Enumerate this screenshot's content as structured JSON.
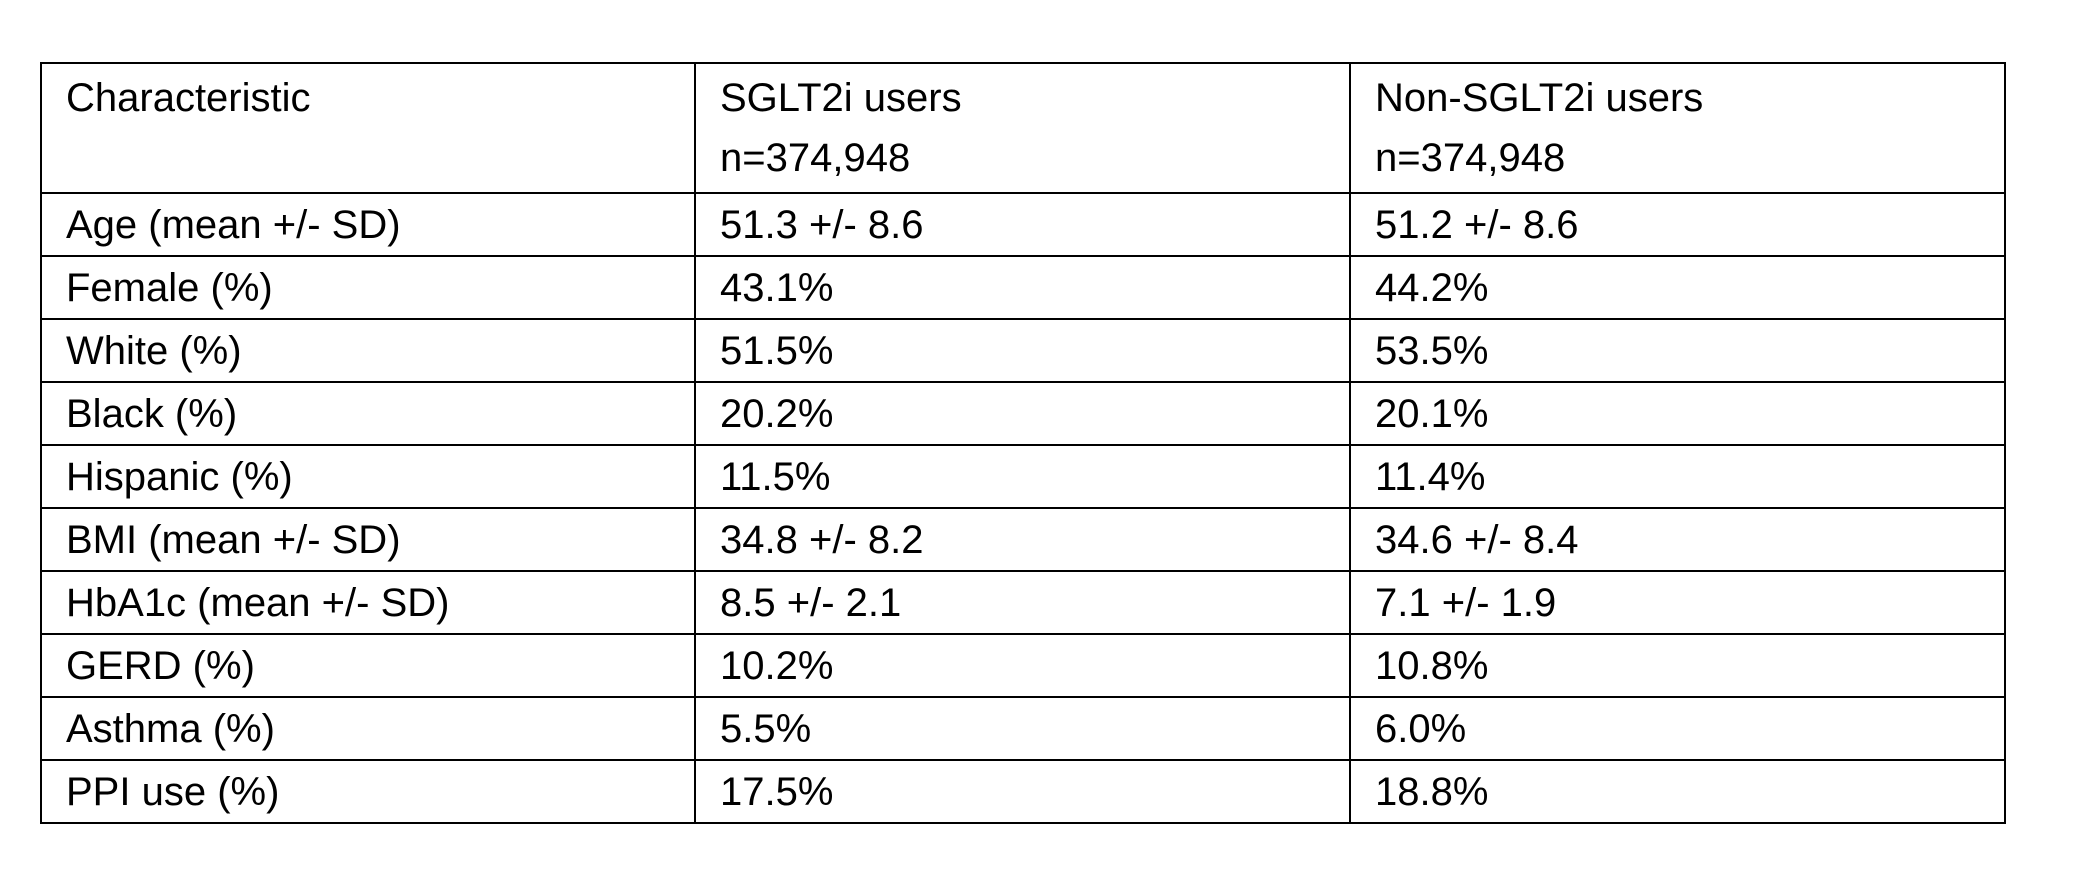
{
  "table": {
    "headers": [
      {
        "line1": "Characteristic",
        "line2": ""
      },
      {
        "line1": "SGLT2i users",
        "line2": "n=374,948"
      },
      {
        "line1": "Non-SGLT2i users",
        "line2": "n=374,948"
      }
    ],
    "rows": [
      [
        "Age (mean +/- SD)",
        "51.3 +/- 8.6",
        "51.2 +/- 8.6"
      ],
      [
        "Female (%)",
        "43.1%",
        "44.2%"
      ],
      [
        "White (%)",
        "51.5%",
        "53.5%"
      ],
      [
        "Black (%)",
        "20.2%",
        "20.1%"
      ],
      [
        "Hispanic (%)",
        "11.5%",
        "11.4%"
      ],
      [
        "BMI (mean +/- SD)",
        "34.8 +/- 8.2",
        "34.6 +/- 8.4"
      ],
      [
        "HbA1c (mean +/- SD)",
        "8.5 +/- 2.1",
        "7.1 +/- 1.9"
      ],
      [
        "GERD (%)",
        "10.2%",
        "10.8%"
      ],
      [
        "Asthma (%)",
        "5.5%",
        "6.0%"
      ],
      [
        "PPI use (%)",
        "17.5%",
        "18.8%"
      ]
    ]
  }
}
